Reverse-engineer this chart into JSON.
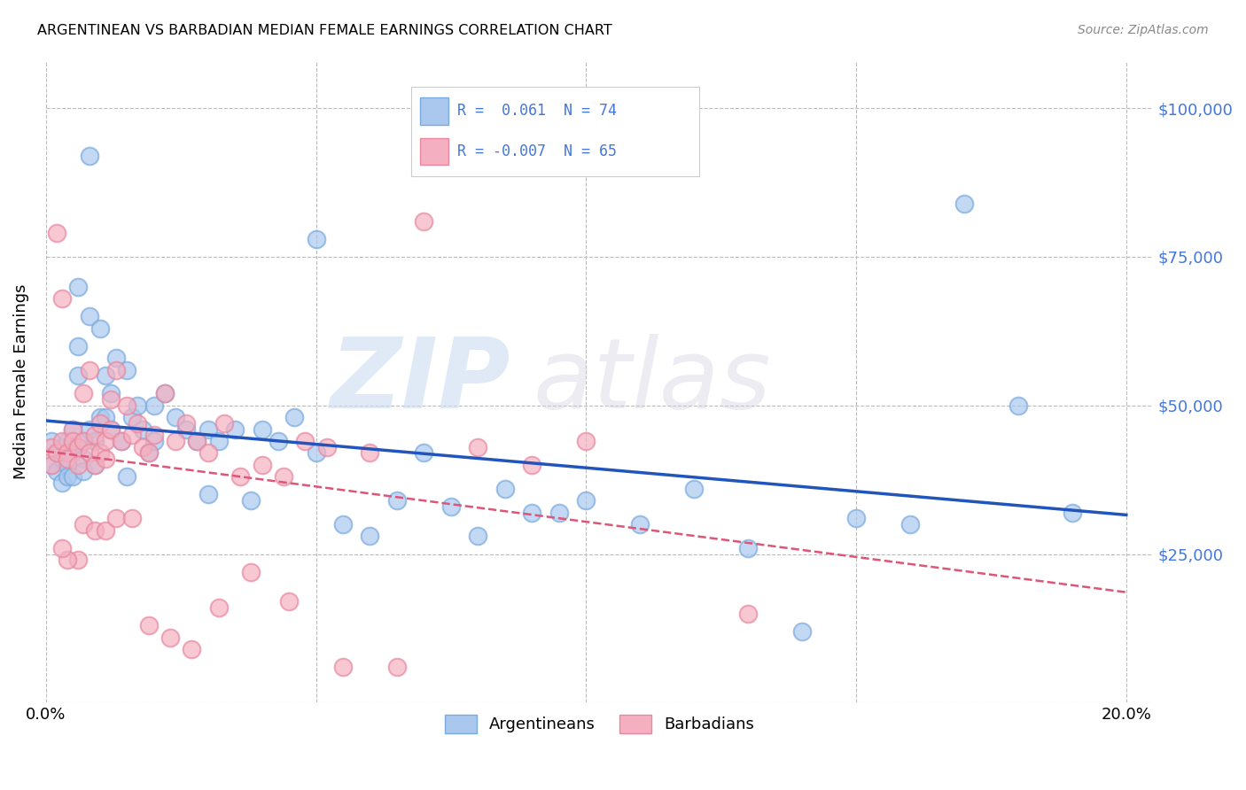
{
  "title": "ARGENTINEAN VS BARBADIAN MEDIAN FEMALE EARNINGS CORRELATION CHART",
  "source": "Source: ZipAtlas.com",
  "ylabel": "Median Female Earnings",
  "xlim": [
    0.0,
    0.205
  ],
  "ylim": [
    0,
    108000
  ],
  "yticks": [
    0,
    25000,
    50000,
    75000,
    100000
  ],
  "ytick_labels": [
    "",
    "$25,000",
    "$50,000",
    "$75,000",
    "$100,000"
  ],
  "xticks": [
    0.0,
    0.05,
    0.1,
    0.15,
    0.2
  ],
  "xtick_labels": [
    "0.0%",
    "",
    "",
    "",
    "20.0%"
  ],
  "background_color": "#ffffff",
  "grid_color": "#bbbbbb",
  "blue_line_color": "#2255bb",
  "pink_line_color": "#dd5577",
  "blue_scatter_color": "#aac8ee",
  "blue_edge_color": "#7aaade",
  "pink_scatter_color": "#f4b0c0",
  "pink_edge_color": "#e888a0",
  "legend_text_color": "#4477dd",
  "ytick_color": "#4477dd",
  "argentineans_x": [
    0.001,
    0.001,
    0.002,
    0.002,
    0.003,
    0.003,
    0.003,
    0.004,
    0.004,
    0.004,
    0.005,
    0.005,
    0.005,
    0.006,
    0.006,
    0.006,
    0.007,
    0.007,
    0.007,
    0.008,
    0.008,
    0.009,
    0.009,
    0.01,
    0.01,
    0.011,
    0.011,
    0.012,
    0.012,
    0.013,
    0.014,
    0.015,
    0.016,
    0.017,
    0.018,
    0.019,
    0.02,
    0.022,
    0.024,
    0.026,
    0.028,
    0.03,
    0.032,
    0.035,
    0.038,
    0.04,
    0.043,
    0.046,
    0.05,
    0.055,
    0.06,
    0.065,
    0.07,
    0.075,
    0.08,
    0.085,
    0.09,
    0.095,
    0.1,
    0.11,
    0.12,
    0.13,
    0.14,
    0.15,
    0.16,
    0.17,
    0.18,
    0.19,
    0.05,
    0.03,
    0.02,
    0.015,
    0.008,
    0.006
  ],
  "argentineans_y": [
    44000,
    40000,
    42000,
    39000,
    43000,
    41000,
    37000,
    44000,
    40000,
    38000,
    46000,
    42000,
    38000,
    60000,
    55000,
    43000,
    44000,
    41000,
    39000,
    65000,
    46000,
    44000,
    40000,
    63000,
    48000,
    55000,
    48000,
    52000,
    46000,
    58000,
    44000,
    56000,
    48000,
    50000,
    46000,
    42000,
    50000,
    52000,
    48000,
    46000,
    44000,
    46000,
    44000,
    46000,
    34000,
    46000,
    44000,
    48000,
    42000,
    30000,
    28000,
    34000,
    42000,
    33000,
    28000,
    36000,
    32000,
    32000,
    34000,
    30000,
    36000,
    26000,
    12000,
    31000,
    30000,
    84000,
    50000,
    32000,
    78000,
    35000,
    44000,
    38000,
    92000,
    70000
  ],
  "barbadians_x": [
    0.001,
    0.001,
    0.002,
    0.002,
    0.003,
    0.003,
    0.004,
    0.004,
    0.005,
    0.005,
    0.006,
    0.006,
    0.007,
    0.007,
    0.008,
    0.008,
    0.009,
    0.009,
    0.01,
    0.01,
    0.011,
    0.011,
    0.012,
    0.012,
    0.013,
    0.014,
    0.015,
    0.016,
    0.017,
    0.018,
    0.019,
    0.02,
    0.022,
    0.024,
    0.026,
    0.028,
    0.03,
    0.033,
    0.036,
    0.04,
    0.044,
    0.048,
    0.052,
    0.06,
    0.07,
    0.08,
    0.09,
    0.1,
    0.006,
    0.004,
    0.003,
    0.007,
    0.009,
    0.011,
    0.013,
    0.016,
    0.019,
    0.023,
    0.027,
    0.032,
    0.038,
    0.045,
    0.055,
    0.065,
    0.13
  ],
  "barbadians_y": [
    43000,
    40000,
    42000,
    79000,
    44000,
    68000,
    42000,
    41000,
    46000,
    44000,
    43000,
    40000,
    44000,
    52000,
    42000,
    56000,
    45000,
    40000,
    47000,
    42000,
    44000,
    41000,
    46000,
    51000,
    56000,
    44000,
    50000,
    45000,
    47000,
    43000,
    42000,
    45000,
    52000,
    44000,
    47000,
    44000,
    42000,
    47000,
    38000,
    40000,
    38000,
    44000,
    43000,
    42000,
    81000,
    43000,
    40000,
    44000,
    24000,
    24000,
    26000,
    30000,
    29000,
    29000,
    31000,
    31000,
    13000,
    11000,
    9000,
    16000,
    22000,
    17000,
    6000,
    6000,
    15000
  ]
}
